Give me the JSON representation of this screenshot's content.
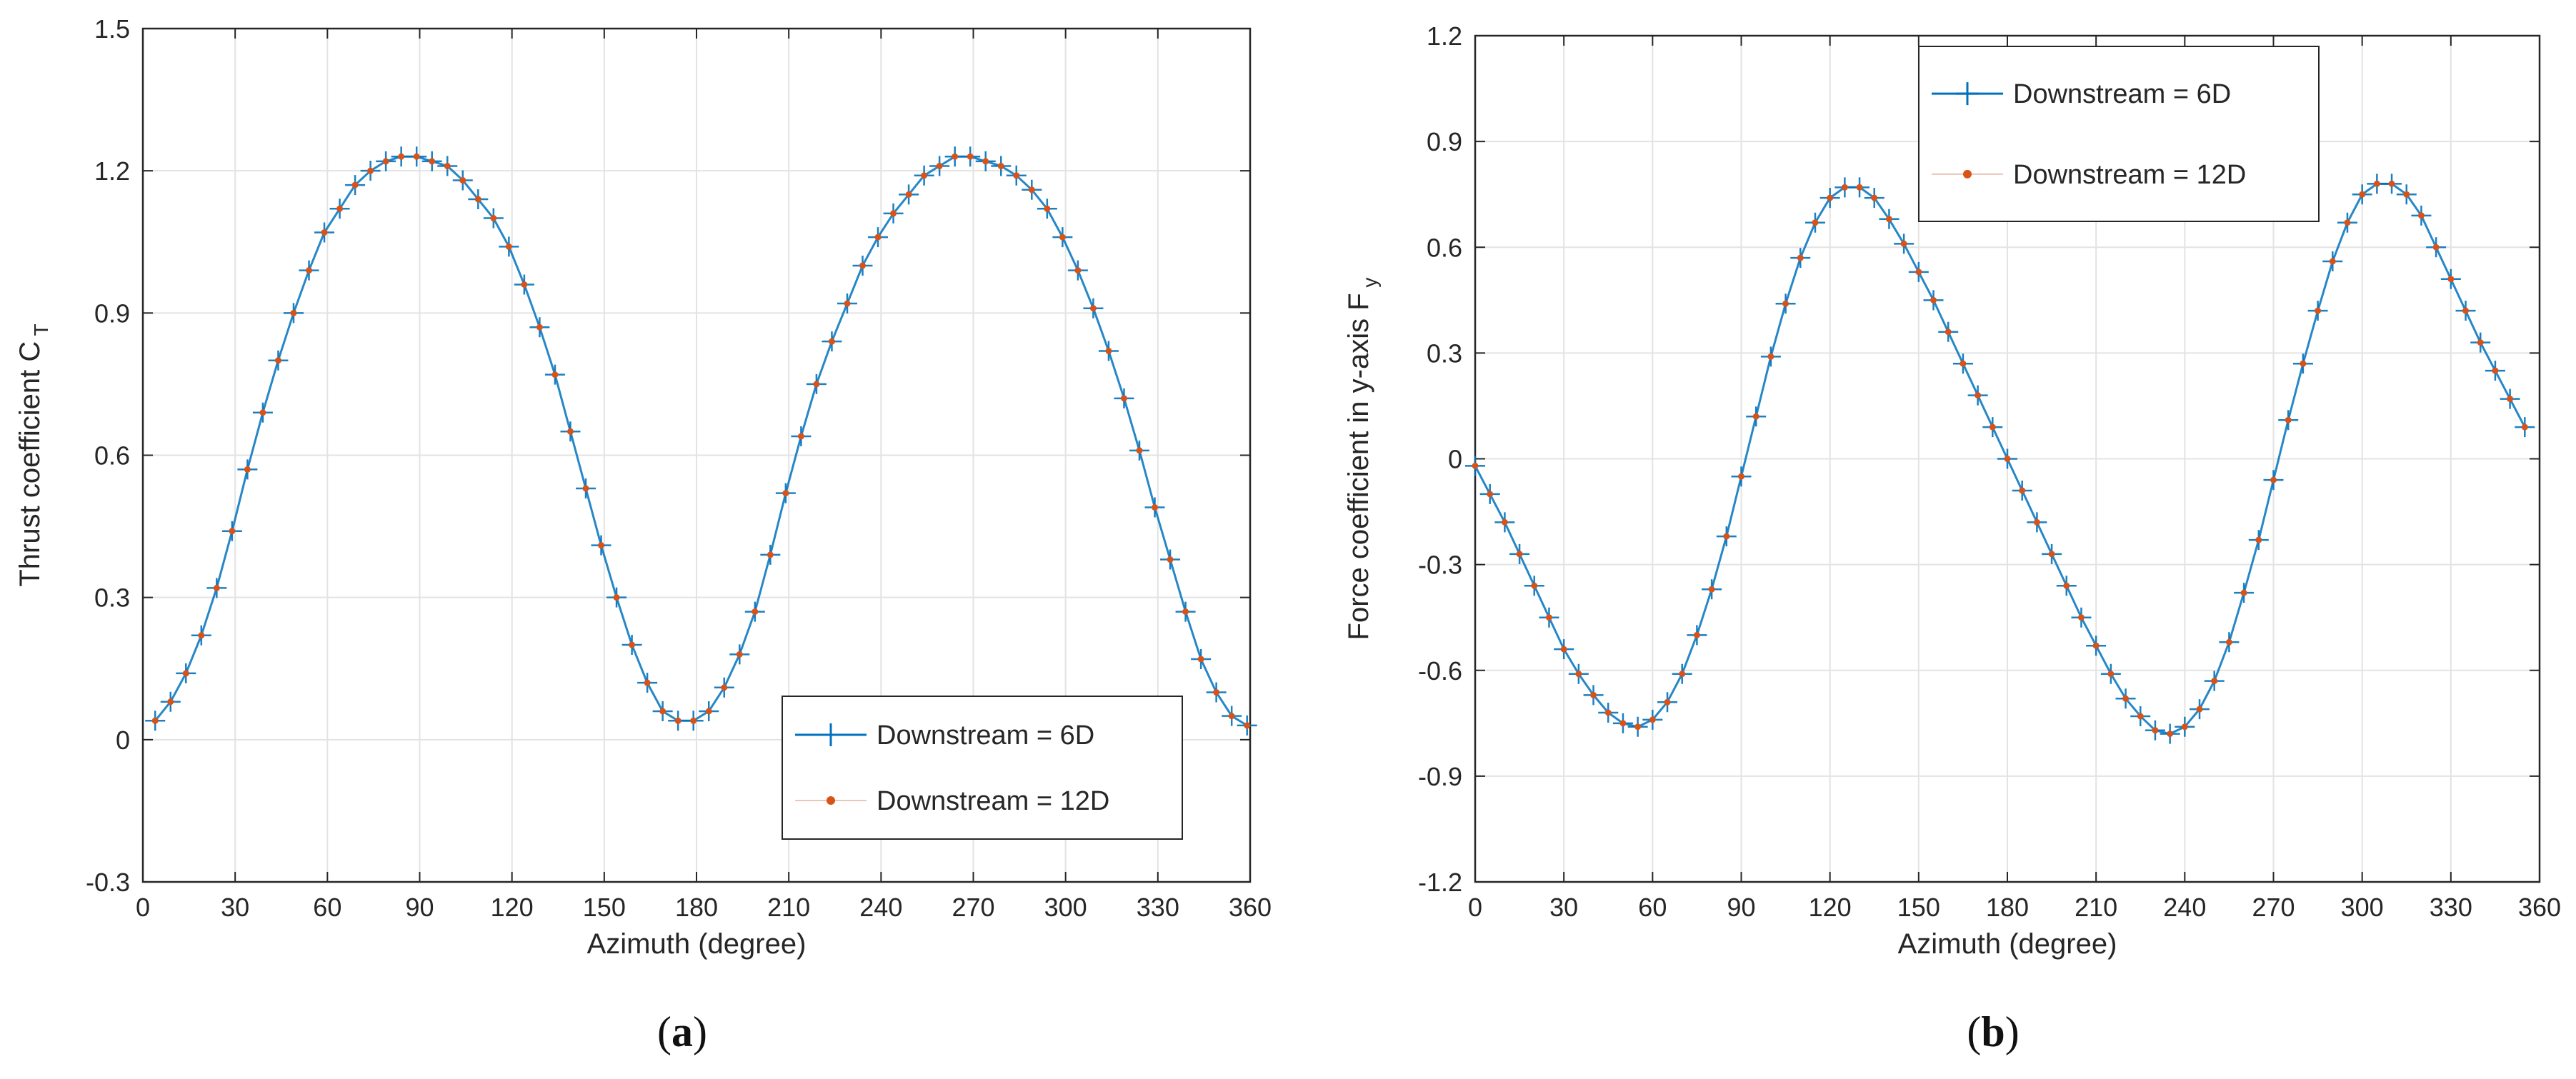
{
  "chart_data": [
    {
      "type": "line",
      "panel_label": "(a)",
      "xlabel": "Azimuth (degree)",
      "ylabel": "Thrust coefficient C",
      "ylabel_sub": "T",
      "xlim": [
        0,
        360
      ],
      "ylim": [
        -0.3,
        1.5
      ],
      "xticks": [
        0,
        30,
        60,
        90,
        120,
        150,
        180,
        210,
        240,
        270,
        300,
        330,
        360
      ],
      "yticks": [
        -0.3,
        0,
        0.3,
        0.6,
        0.9,
        1.2,
        1.5
      ],
      "grid": true,
      "legend_position": "bottom-right",
      "x": [
        4,
        9,
        14,
        19,
        24,
        29,
        34,
        39,
        44,
        49,
        54,
        59,
        64,
        69,
        74,
        79,
        84,
        89,
        94,
        99,
        104,
        109,
        114,
        119,
        124,
        129,
        134,
        139,
        144,
        149,
        154,
        159,
        164,
        169,
        174,
        179,
        184,
        189,
        194,
        199,
        204,
        209,
        214,
        219,
        224,
        229,
        234,
        239,
        244,
        249,
        254,
        259,
        264,
        269,
        274,
        279,
        284,
        289,
        294,
        299,
        304,
        309,
        314,
        319,
        324,
        329,
        334,
        339,
        344,
        349,
        354,
        359
      ],
      "series": [
        {
          "name": "Downstream = 6D",
          "color": "#0072bd",
          "marker": "plus",
          "values": [
            0.04,
            0.08,
            0.14,
            0.22,
            0.32,
            0.44,
            0.57,
            0.69,
            0.8,
            0.9,
            0.99,
            1.07,
            1.12,
            1.17,
            1.2,
            1.22,
            1.23,
            1.23,
            1.22,
            1.21,
            1.18,
            1.14,
            1.1,
            1.04,
            0.96,
            0.87,
            0.77,
            0.65,
            0.53,
            0.41,
            0.3,
            0.2,
            0.12,
            0.06,
            0.04,
            0.04,
            0.06,
            0.11,
            0.18,
            0.27,
            0.39,
            0.52,
            0.64,
            0.75,
            0.84,
            0.92,
            1.0,
            1.06,
            1.11,
            1.15,
            1.19,
            1.21,
            1.23,
            1.23,
            1.22,
            1.21,
            1.19,
            1.16,
            1.12,
            1.06,
            0.99,
            0.91,
            0.82,
            0.72,
            0.61,
            0.49,
            0.38,
            0.27,
            0.17,
            0.1,
            0.05,
            0.03
          ]
        },
        {
          "name": "Downstream = 12D",
          "color": "#d95319",
          "marker": "dot",
          "values": [
            0.04,
            0.08,
            0.14,
            0.22,
            0.32,
            0.44,
            0.57,
            0.69,
            0.8,
            0.9,
            0.99,
            1.07,
            1.12,
            1.17,
            1.2,
            1.22,
            1.23,
            1.23,
            1.22,
            1.21,
            1.18,
            1.14,
            1.1,
            1.04,
            0.96,
            0.87,
            0.77,
            0.65,
            0.53,
            0.41,
            0.3,
            0.2,
            0.12,
            0.06,
            0.04,
            0.04,
            0.06,
            0.11,
            0.18,
            0.27,
            0.39,
            0.52,
            0.64,
            0.75,
            0.84,
            0.92,
            1.0,
            1.06,
            1.11,
            1.15,
            1.19,
            1.21,
            1.23,
            1.23,
            1.22,
            1.21,
            1.19,
            1.16,
            1.12,
            1.06,
            0.99,
            0.91,
            0.82,
            0.72,
            0.61,
            0.49,
            0.38,
            0.27,
            0.17,
            0.1,
            0.05,
            0.03
          ]
        }
      ]
    },
    {
      "type": "line",
      "panel_label": "(b)",
      "xlabel": "Azimuth (degree)",
      "ylabel": "Force coefficient in y-axis F",
      "ylabel_sub": "y",
      "xlim": [
        0,
        360
      ],
      "ylim": [
        -1.2,
        1.2
      ],
      "xticks": [
        0,
        30,
        60,
        90,
        120,
        150,
        180,
        210,
        240,
        270,
        300,
        330,
        360
      ],
      "yticks": [
        -1.2,
        -0.9,
        -0.6,
        -0.3,
        0,
        0.3,
        0.6,
        0.9,
        1.2
      ],
      "grid": true,
      "legend_position": "top-left",
      "x": [
        0,
        5,
        10,
        15,
        20,
        25,
        30,
        35,
        40,
        45,
        50,
        55,
        60,
        65,
        70,
        75,
        80,
        85,
        90,
        95,
        100,
        105,
        110,
        115,
        120,
        125,
        130,
        135,
        140,
        145,
        150,
        155,
        160,
        165,
        170,
        175,
        180,
        185,
        190,
        195,
        200,
        205,
        210,
        215,
        220,
        225,
        230,
        235,
        240,
        245,
        250,
        255,
        260,
        265,
        270,
        275,
        280,
        285,
        290,
        295,
        300,
        305,
        310,
        315,
        320,
        325,
        330,
        335,
        340,
        345,
        350,
        355
      ],
      "series": [
        {
          "name": "Downstream = 6D",
          "color": "#0072bd",
          "marker": "plus",
          "values": [
            -0.02,
            -0.1,
            -0.18,
            -0.27,
            -0.36,
            -0.45,
            -0.54,
            -0.61,
            -0.67,
            -0.72,
            -0.75,
            -0.76,
            -0.74,
            -0.69,
            -0.61,
            -0.5,
            -0.37,
            -0.22,
            -0.05,
            0.12,
            0.29,
            0.44,
            0.57,
            0.67,
            0.74,
            0.77,
            0.77,
            0.74,
            0.68,
            0.61,
            0.53,
            0.45,
            0.36,
            0.27,
            0.18,
            0.09,
            0.0,
            -0.09,
            -0.18,
            -0.27,
            -0.36,
            -0.45,
            -0.53,
            -0.61,
            -0.68,
            -0.73,
            -0.77,
            -0.78,
            -0.76,
            -0.71,
            -0.63,
            -0.52,
            -0.38,
            -0.23,
            -0.06,
            0.11,
            0.27,
            0.42,
            0.56,
            0.67,
            0.75,
            0.78,
            0.78,
            0.75,
            0.69,
            0.6,
            0.51,
            0.42,
            0.33,
            0.25,
            0.17,
            0.09
          ]
        },
        {
          "name": "Downstream = 12D",
          "color": "#d95319",
          "marker": "dot",
          "values": [
            -0.02,
            -0.1,
            -0.18,
            -0.27,
            -0.36,
            -0.45,
            -0.54,
            -0.61,
            -0.67,
            -0.72,
            -0.75,
            -0.76,
            -0.74,
            -0.69,
            -0.61,
            -0.5,
            -0.37,
            -0.22,
            -0.05,
            0.12,
            0.29,
            0.44,
            0.57,
            0.67,
            0.74,
            0.77,
            0.77,
            0.74,
            0.68,
            0.61,
            0.53,
            0.45,
            0.36,
            0.27,
            0.18,
            0.09,
            0.0,
            -0.09,
            -0.18,
            -0.27,
            -0.36,
            -0.45,
            -0.53,
            -0.61,
            -0.68,
            -0.73,
            -0.77,
            -0.78,
            -0.76,
            -0.71,
            -0.63,
            -0.52,
            -0.38,
            -0.23,
            -0.06,
            0.11,
            0.27,
            0.42,
            0.56,
            0.67,
            0.75,
            0.78,
            0.78,
            0.75,
            0.69,
            0.6,
            0.51,
            0.42,
            0.33,
            0.25,
            0.17,
            0.09
          ]
        }
      ]
    }
  ]
}
